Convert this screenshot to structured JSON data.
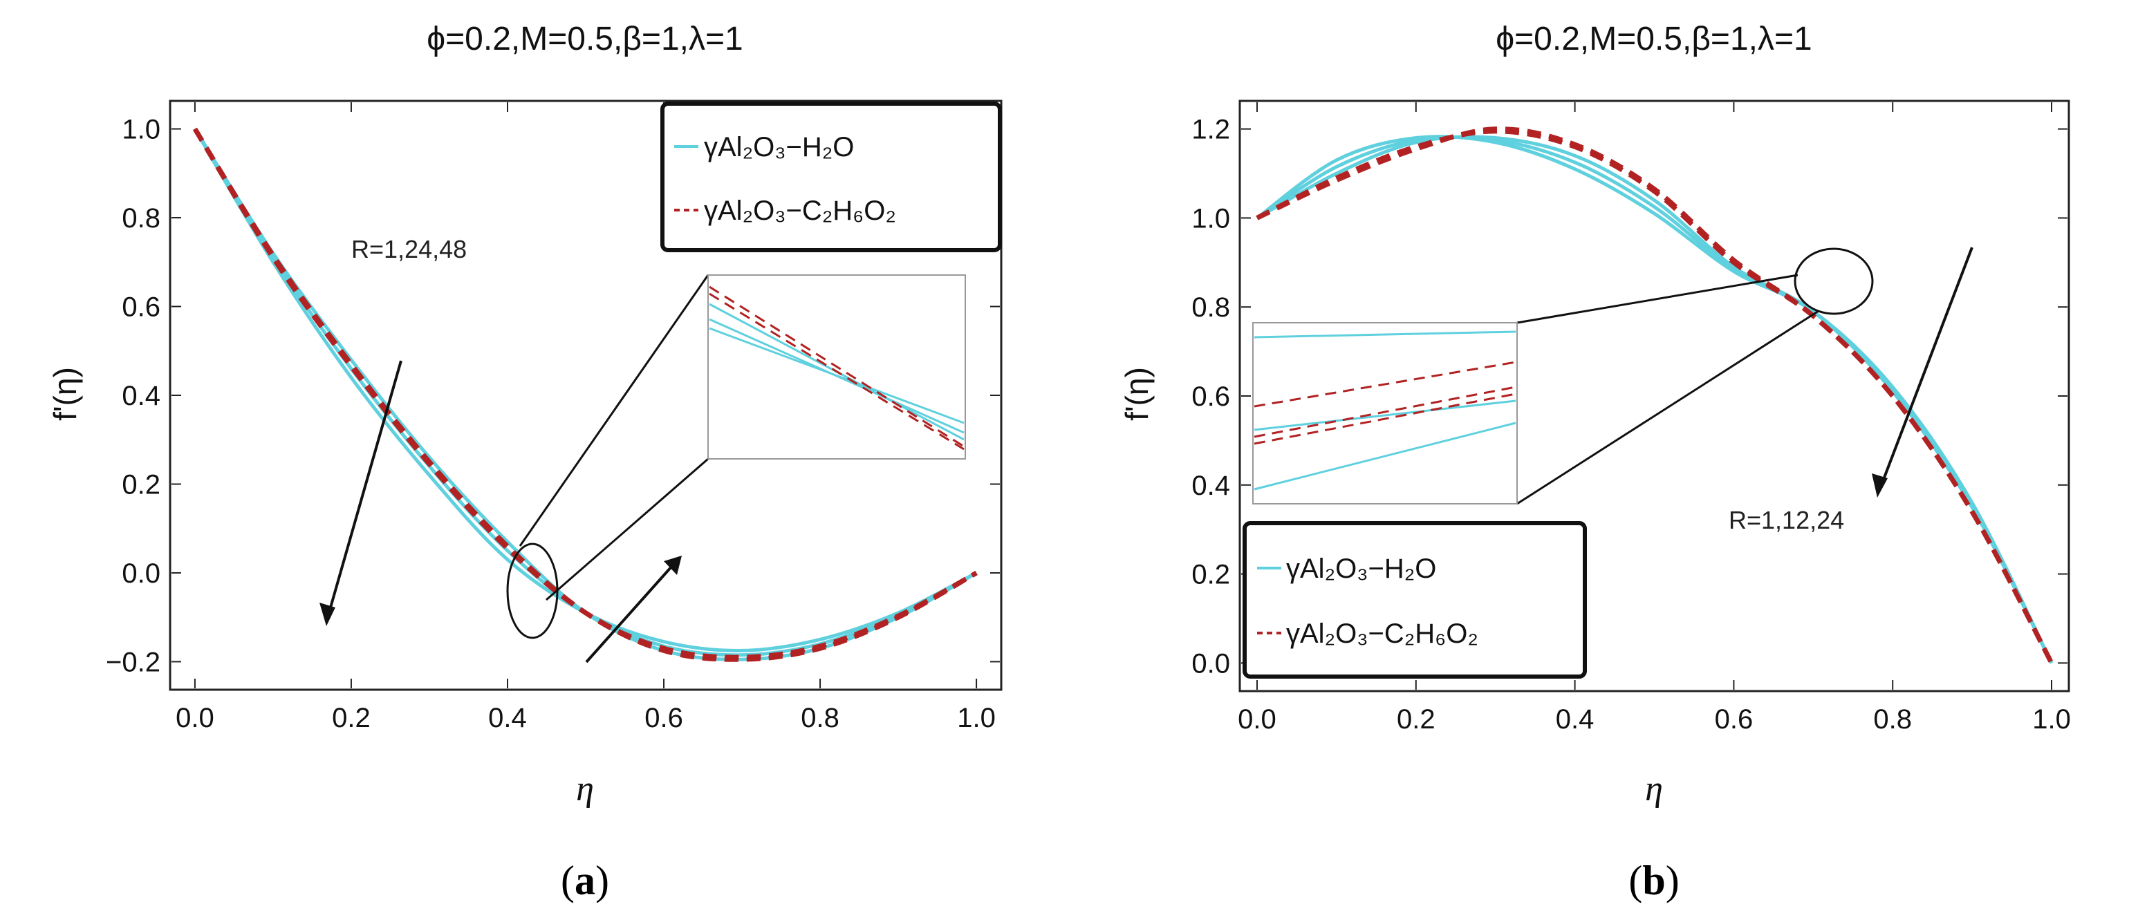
{
  "chart_data": [
    {
      "type": "line",
      "panel_label": "a",
      "title": "ϕ=0.2,M=0.5,β=1,λ=1",
      "xlabel": "η",
      "ylabel": "f'(η)",
      "xlim": [
        -0.03,
        1.03
      ],
      "ylim": [
        -0.26,
        1.06
      ],
      "xticks": [
        "0.0",
        "0.2",
        "0.4",
        "0.6",
        "0.8",
        "1.0"
      ],
      "yticks": [
        "-0.2",
        "0.0",
        "0.2",
        "0.4",
        "0.6",
        "0.8",
        "1.0"
      ],
      "annotation": "R=1,24,48",
      "legend": [
        "γAl₂O₃−H₂O",
        "γAl₂O₃−C₂H₆O₂"
      ],
      "x": [
        0.0,
        0.1,
        0.2,
        0.3,
        0.4,
        0.5,
        0.6,
        0.7,
        0.8,
        0.9,
        1.0
      ],
      "series": [
        {
          "name": "γAl₂O₃−H₂O R=1",
          "fluid": "water",
          "values": [
            1.0,
            0.7,
            0.44,
            0.22,
            0.03,
            -0.09,
            -0.155,
            -0.175,
            -0.15,
            -0.09,
            0.0
          ]
        },
        {
          "name": "γAl₂O₃−H₂O R=24",
          "fluid": "water",
          "values": [
            1.0,
            0.71,
            0.46,
            0.24,
            0.05,
            -0.09,
            -0.165,
            -0.185,
            -0.16,
            -0.095,
            0.0
          ]
        },
        {
          "name": "γAl₂O₃−H₂O R=48",
          "fluid": "water",
          "values": [
            1.0,
            0.72,
            0.48,
            0.26,
            0.07,
            -0.09,
            -0.175,
            -0.195,
            -0.17,
            -0.1,
            0.0
          ]
        },
        {
          "name": "γAl₂O₃−C₂H₆O₂ R=1",
          "fluid": "glycol",
          "values": [
            1.0,
            0.71,
            0.465,
            0.245,
            0.055,
            -0.09,
            -0.17,
            -0.19,
            -0.165,
            -0.097,
            0.0
          ]
        },
        {
          "name": "γAl₂O₃−C₂H₆O₂ R=24",
          "fluid": "glycol",
          "values": [
            1.0,
            0.715,
            0.47,
            0.25,
            0.06,
            -0.09,
            -0.175,
            -0.195,
            -0.17,
            -0.1,
            0.0
          ]
        }
      ]
    },
    {
      "type": "line",
      "panel_label": "b",
      "title": "ϕ=0.2,M=0.5,β=1,λ=1",
      "xlabel": "η",
      "ylabel": "f'(η)",
      "xlim": [
        -0.02,
        1.02
      ],
      "ylim": [
        -0.06,
        1.26
      ],
      "xticks": [
        "0.0",
        "0.2",
        "0.4",
        "0.6",
        "0.8",
        "1.0"
      ],
      "yticks": [
        "0.0",
        "0.2",
        "0.4",
        "0.6",
        "0.8",
        "1.0",
        "1.2"
      ],
      "annotation": "R=1,12,24",
      "legend": [
        "γAl₂O₃−H₂O",
        "γAl₂O₃−C₂H₆O₂"
      ],
      "x": [
        0.0,
        0.1,
        0.2,
        0.3,
        0.4,
        0.5,
        0.6,
        0.7,
        0.8,
        0.9,
        1.0
      ],
      "series": [
        {
          "name": "γAl₂O₃−H₂O R=1",
          "fluid": "water",
          "values": [
            1.0,
            1.13,
            1.18,
            1.17,
            1.11,
            1.01,
            0.88,
            0.79,
            0.62,
            0.36,
            0.0
          ]
        },
        {
          "name": "γAl₂O₃−H₂O R=12",
          "fluid": "water",
          "values": [
            1.0,
            1.115,
            1.175,
            1.175,
            1.125,
            1.025,
            0.885,
            0.79,
            0.615,
            0.355,
            0.0
          ]
        },
        {
          "name": "γAl₂O₃−H₂O R=24",
          "fluid": "water",
          "values": [
            1.0,
            1.1,
            1.17,
            1.18,
            1.14,
            1.04,
            0.89,
            0.79,
            0.61,
            0.35,
            0.0
          ]
        },
        {
          "name": "γAl₂O₃−C₂H₆O₂ R=1",
          "fluid": "glycol",
          "values": [
            1.0,
            1.09,
            1.16,
            1.195,
            1.16,
            1.06,
            0.9,
            0.78,
            0.6,
            0.34,
            0.0
          ]
        },
        {
          "name": "γAl₂O₃−C₂H₆O₂ R=12",
          "fluid": "glycol",
          "values": [
            1.0,
            1.085,
            1.155,
            1.2,
            1.165,
            1.065,
            0.905,
            0.78,
            0.6,
            0.34,
            0.0
          ]
        }
      ]
    }
  ],
  "colors": {
    "water": "#5fd0de",
    "glycol": "#b22222",
    "axis": "#222222"
  }
}
